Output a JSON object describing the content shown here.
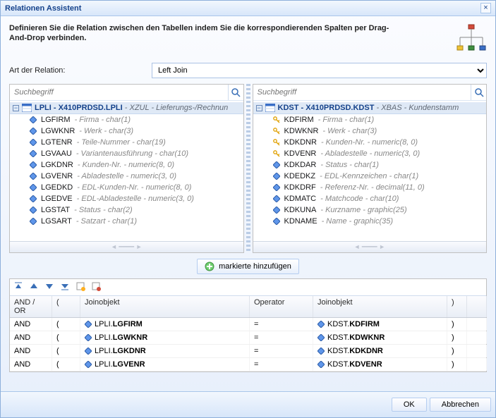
{
  "window": {
    "title": "Relationen Assistent",
    "close_icon": "×"
  },
  "description": "Definieren Sie die Relation zwischen den Tabellen indem Sie die korrespondierenden Spalten per Drag-And-Drop verbinden.",
  "relation": {
    "label": "Art der Relation:",
    "value": "Left Join"
  },
  "panels": {
    "left": {
      "search_placeholder": "Suchbegriff",
      "root_prefix": "LPLI - X410PRDSD.LPLI",
      "root_suffix": " - XZUL - Lieferungs-/Rechnun",
      "fields": [
        {
          "name": "LGFIRM",
          "meta": "Firma - char(1)",
          "key": false
        },
        {
          "name": "LGWKNR",
          "meta": "Werk - char(3)",
          "key": false
        },
        {
          "name": "LGTENR",
          "meta": "Teile-Nummer - char(19)",
          "key": false
        },
        {
          "name": "LGVAAU",
          "meta": "Variantenausführung - char(10)",
          "key": false
        },
        {
          "name": "LGKDNR",
          "meta": "Kunden-Nr. - numeric(8, 0)",
          "key": false
        },
        {
          "name": "LGVENR",
          "meta": "Abladestelle - numeric(3, 0)",
          "key": false
        },
        {
          "name": "LGEDKD",
          "meta": "EDL-Kunden-Nr. - numeric(8, 0)",
          "key": false
        },
        {
          "name": "LGEDVE",
          "meta": "EDL-Abladestelle - numeric(3, 0)",
          "key": false
        },
        {
          "name": "LGSTAT",
          "meta": "Status - char(2)",
          "key": false
        },
        {
          "name": "LGSART",
          "meta": "Satzart - char(1)",
          "key": false
        }
      ]
    },
    "right": {
      "search_placeholder": "Suchbegriff",
      "root_prefix": "KDST - X410PRDSD.KDST",
      "root_suffix": " - XBAS - Kundenstamm",
      "fields": [
        {
          "name": "KDFIRM",
          "meta": "Firma - char(1)",
          "key": true
        },
        {
          "name": "KDWKNR",
          "meta": "Werk - char(3)",
          "key": true
        },
        {
          "name": "KDKDNR",
          "meta": "Kunden-Nr. - numeric(8, 0)",
          "key": true
        },
        {
          "name": "KDVENR",
          "meta": "Abladestelle - numeric(3, 0)",
          "key": true
        },
        {
          "name": "KDKDAR",
          "meta": "Status - char(1)",
          "key": false
        },
        {
          "name": "KDEDKZ",
          "meta": "EDL-Kennzeichen - char(1)",
          "key": false
        },
        {
          "name": "KDKDRF",
          "meta": "Referenz-Nr. - decimal(11, 0)",
          "key": false
        },
        {
          "name": "KDMATC",
          "meta": "Matchcode - char(10)",
          "key": false
        },
        {
          "name": "KDKUNA",
          "meta": "Kurzname - graphic(25)",
          "key": false
        },
        {
          "name": "KDNAME",
          "meta": "Name - graphic(35)",
          "key": false
        }
      ]
    }
  },
  "add_button": "markierte hinzufügen",
  "grid": {
    "columns": [
      "AND / OR",
      "(",
      "Joinobjekt",
      "Operator",
      "Joinobjekt",
      ")",
      ""
    ],
    "rows": [
      {
        "andor": "AND",
        "open": "(",
        "left_prefix": "LPLI.",
        "left_field": "LGFIRM",
        "op": "=",
        "right_prefix": "KDST.",
        "right_field": "KDFIRM",
        "close": ")"
      },
      {
        "andor": "AND",
        "open": "(",
        "left_prefix": "LPLI.",
        "left_field": "LGWKNR",
        "op": "=",
        "right_prefix": "KDST.",
        "right_field": "KDWKNR",
        "close": ")"
      },
      {
        "andor": "AND",
        "open": "(",
        "left_prefix": "LPLI.",
        "left_field": "LGKDNR",
        "op": "=",
        "right_prefix": "KDST.",
        "right_field": "KDKDNR",
        "close": ")"
      },
      {
        "andor": "AND",
        "open": "(",
        "left_prefix": "LPLI.",
        "left_field": "LGVENR",
        "op": "=",
        "right_prefix": "KDST.",
        "right_field": "KDVENR",
        "close": ")"
      }
    ]
  },
  "footer": {
    "ok": "OK",
    "cancel": "Abbrechen"
  },
  "colors": {
    "accent": "#15428b",
    "border": "#a9c6ea",
    "field_icon": "#5f96ea",
    "key_icon": "#ffb020"
  }
}
